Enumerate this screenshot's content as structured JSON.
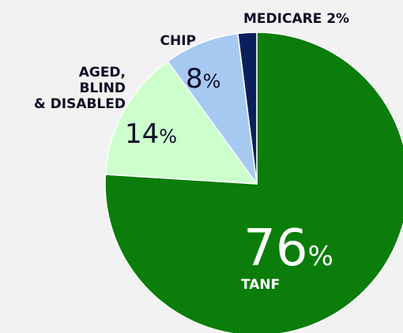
{
  "colors": {
    "background": "#f2f2f2",
    "tanf": "#0a7d0a",
    "aged_blind_disabled": "#ccffcc",
    "chip": "#a6c9f2",
    "medicare": "#0b1f5c",
    "label_dark": "#0d0d26",
    "label_light": "#ffffff",
    "slice_border": "#ffffff"
  },
  "chart_data": {
    "type": "pie",
    "start": "12 o'clock",
    "direction": "clockwise",
    "slices": [
      {
        "name": "TANF",
        "value": 76,
        "value_text": "76",
        "suffix": "%",
        "color_key": "tanf"
      },
      {
        "name": "AGED, BLIND & DISABLED",
        "value": 14,
        "value_text": "14",
        "suffix": "%",
        "color_key": "aged_blind_disabled"
      },
      {
        "name": "CHIP",
        "value": 8,
        "value_text": "8",
        "suffix": "%",
        "color_key": "chip"
      },
      {
        "name": "MEDICARE",
        "value": 2,
        "value_text": "2",
        "suffix": "%",
        "color_key": "medicare"
      }
    ],
    "labels": {
      "tanf_value": "76",
      "tanf_pct": "%",
      "tanf_name": "TANF",
      "aged_line1": "AGED,",
      "aged_line2": "BLIND",
      "aged_line3": "& DISABLED",
      "aged_value": "14",
      "aged_pct": "%",
      "chip_name": "CHIP",
      "chip_value": "8",
      "chip_pct": "%",
      "medicare_label": "MEDICARE 2%"
    }
  }
}
